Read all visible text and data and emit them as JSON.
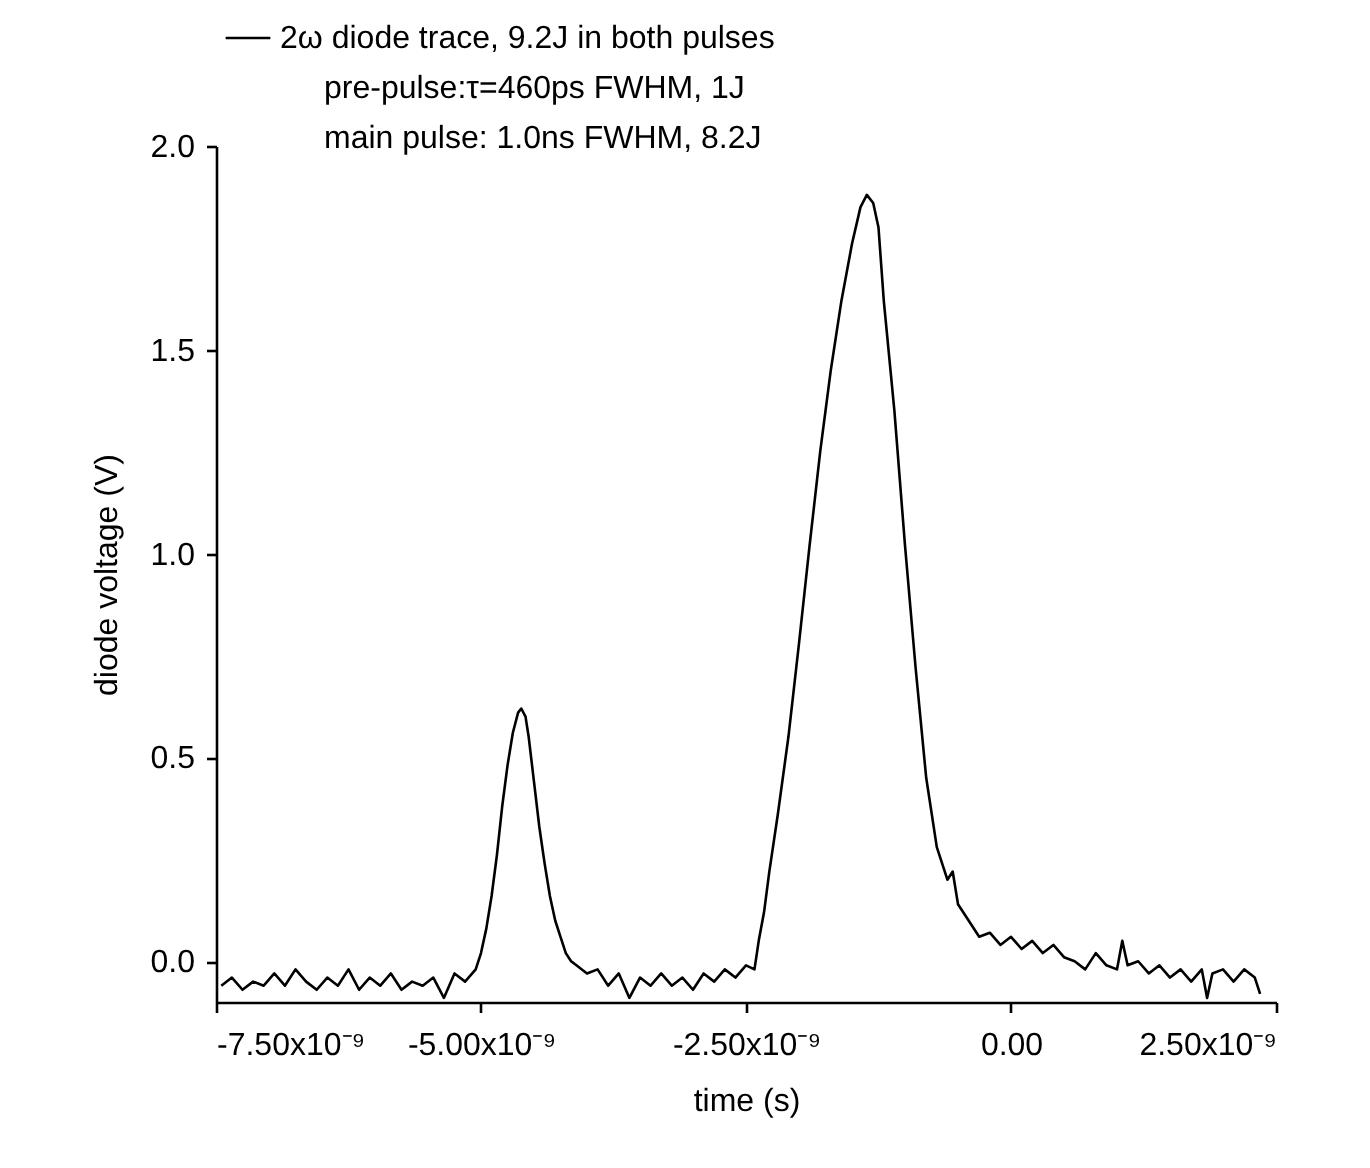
{
  "chart_data": {
    "type": "line",
    "xlabel": "time (s)",
    "ylabel": "diode voltage (V)",
    "xlim": [
      -7.5e-09,
      2.5e-09
    ],
    "xticks": [
      {
        "value": -7.5e-09,
        "label": "-7.50x10⁻⁹"
      },
      {
        "value": -5e-09,
        "label": "-5.00x10⁻⁹"
      },
      {
        "value": -2.5e-09,
        "label": "-2.50x10⁻⁹"
      },
      {
        "value": 0,
        "label": "0.00"
      },
      {
        "value": 2.5e-09,
        "label": "2.50x10⁻⁹"
      }
    ],
    "ylim": [
      -0.1,
      2.0
    ],
    "yticks": [
      {
        "value": 0,
        "label": "0.0"
      },
      0.5,
      {
        "value": 1,
        "label": "1.0"
      },
      1.5,
      {
        "value": 2,
        "label": "2.0"
      }
    ],
    "grid": false,
    "legend": "top",
    "marker": "none",
    "line_style": "solid",
    "annotations": [
      "pre-pulse:τ=460ps FWHM, 1J",
      "main pulse: 1.0ns FWHM, 8.2J"
    ],
    "series": [
      {
        "name": "2ω diode trace, 9.2J in both pulses",
        "color": "#000000",
        "x": [
          -7.45e-09,
          -7.35e-09,
          -7.25e-09,
          -7.15e-09,
          -7.05e-09,
          -6.95e-09,
          -6.85e-09,
          -6.75e-09,
          -6.65e-09,
          -6.55e-09,
          -6.45e-09,
          -6.35e-09,
          -6.25e-09,
          -6.15e-09,
          -6.05e-09,
          -5.95e-09,
          -5.85e-09,
          -5.75e-09,
          -5.65e-09,
          -5.55e-09,
          -5.45e-09,
          -5.35e-09,
          -5.25e-09,
          -5.15e-09,
          -5.05e-09,
          -5e-09,
          -4.95e-09,
          -4.9e-09,
          -4.85e-09,
          -4.8e-09,
          -4.75e-09,
          -4.7e-09,
          -4.65e-09,
          -4.62e-09,
          -4.58e-09,
          -4.55e-09,
          -4.5e-09,
          -4.45e-09,
          -4.4e-09,
          -4.35e-09,
          -4.3e-09,
          -4.25e-09,
          -4.2e-09,
          -4.15e-09,
          -4.1e-09,
          -4e-09,
          -3.9e-09,
          -3.8e-09,
          -3.7e-09,
          -3.6e-09,
          -3.5e-09,
          -3.4e-09,
          -3.3e-09,
          -3.2e-09,
          -3.1e-09,
          -3e-09,
          -2.9e-09,
          -2.8e-09,
          -2.7e-09,
          -2.6e-09,
          -2.5e-09,
          -2.42e-09,
          -2.38e-09,
          -2.33e-09,
          -2.28e-09,
          -2.2e-09,
          -2.1e-09,
          -2e-09,
          -1.9e-09,
          -1.8e-09,
          -1.7e-09,
          -1.6e-09,
          -1.5e-09,
          -1.42e-09,
          -1.36e-09,
          -1.3e-09,
          -1.25e-09,
          -1.2e-09,
          -1.1e-09,
          -1e-09,
          -9e-10,
          -8e-10,
          -7e-10,
          -6e-10,
          -5.5e-10,
          -5e-10,
          -4e-10,
          -3e-10,
          -2e-10,
          -1e-10,
          0,
          1e-10,
          2e-10,
          3e-10,
          4e-10,
          5e-10,
          6e-10,
          7e-10,
          8e-10,
          9e-10,
          1e-09,
          1.05e-09,
          1.1e-09,
          1.2e-09,
          1.3e-09,
          1.4e-09,
          1.5e-09,
          1.6e-09,
          1.7e-09,
          1.8e-09,
          1.85e-09,
          1.9e-09,
          2e-09,
          2.1e-09,
          2.2e-09,
          2.3e-09,
          2.35e-09
        ],
        "values": [
          -0.06,
          -0.04,
          -0.07,
          -0.05,
          -0.06,
          -0.03,
          -0.06,
          -0.02,
          -0.05,
          -0.07,
          -0.04,
          -0.06,
          -0.02,
          -0.07,
          -0.04,
          -0.06,
          -0.03,
          -0.07,
          -0.05,
          -0.06,
          -0.04,
          -0.09,
          -0.03,
          -0.05,
          -0.02,
          0.02,
          0.08,
          0.16,
          0.26,
          0.38,
          0.48,
          0.56,
          0.61,
          0.62,
          0.6,
          0.55,
          0.44,
          0.33,
          0.24,
          0.16,
          0.1,
          0.06,
          0.02,
          0.0,
          -0.01,
          -0.03,
          -0.02,
          -0.06,
          -0.03,
          -0.09,
          -0.04,
          -0.06,
          -0.03,
          -0.06,
          -0.04,
          -0.07,
          -0.03,
          -0.05,
          -0.02,
          -0.04,
          -0.01,
          -0.02,
          0.05,
          0.12,
          0.22,
          0.36,
          0.55,
          0.78,
          1.02,
          1.25,
          1.45,
          1.62,
          1.76,
          1.85,
          1.88,
          1.86,
          1.8,
          1.62,
          1.35,
          1.02,
          0.72,
          0.45,
          0.28,
          0.2,
          0.22,
          0.14,
          0.1,
          0.06,
          0.07,
          0.04,
          0.06,
          0.03,
          0.05,
          0.02,
          0.04,
          0.01,
          0.0,
          -0.02,
          0.02,
          -0.01,
          -0.02,
          0.05,
          -0.01,
          0.0,
          -0.03,
          -0.01,
          -0.04,
          -0.02,
          -0.05,
          -0.02,
          -0.09,
          -0.03,
          -0.02,
          -0.05,
          -0.02,
          -0.04,
          -0.08
        ]
      }
    ]
  }
}
